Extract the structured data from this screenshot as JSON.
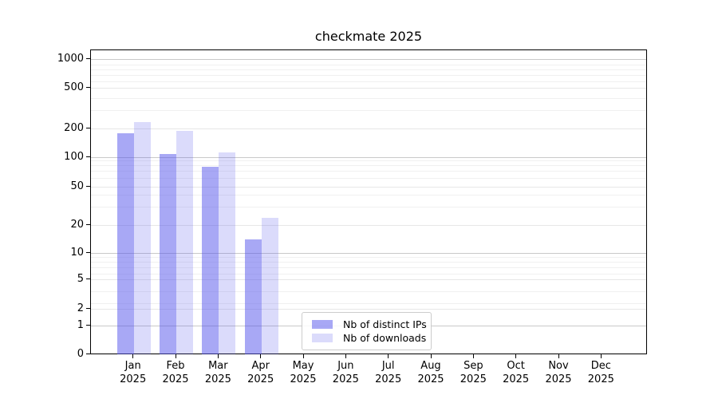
{
  "chart_data": {
    "type": "bar",
    "title": "checkmate 2025",
    "x_axis": {
      "categories": [
        "Jan",
        "Feb",
        "Mar",
        "Apr",
        "May",
        "Jun",
        "Jul",
        "Aug",
        "Sep",
        "Oct",
        "Nov",
        "Dec"
      ],
      "year_line": "2025"
    },
    "y_axis": {
      "scale": "symlog",
      "tick_labels": [
        "1000",
        "500",
        "200",
        "100",
        "50",
        "20",
        "10",
        "5",
        "2",
        "1",
        "0"
      ],
      "ylim": [
        0,
        1200
      ],
      "grid": "horizontal"
    },
    "series": [
      {
        "name": "Nb of distinct IPs",
        "base_color": "#5555eb",
        "alpha": 0.51,
        "effective_color": "#a8a8f0",
        "values": [
          177,
          108,
          80,
          14,
          0,
          0,
          0,
          0,
          0,
          0,
          0,
          0
        ]
      },
      {
        "name": "Nb of downloads",
        "base_color": "#5555eb",
        "alpha": 0.21,
        "effective_color": "#dcdcfa",
        "values": [
          230,
          189,
          113,
          24,
          0,
          0,
          0,
          0,
          0,
          0,
          0,
          0
        ]
      }
    ],
    "legend": {
      "position": "lower center inside"
    },
    "grid_colors": {
      "major": "#c9c9c9",
      "labeled_minor": "#e7e7e7",
      "minor": "#f0f0f0"
    }
  }
}
